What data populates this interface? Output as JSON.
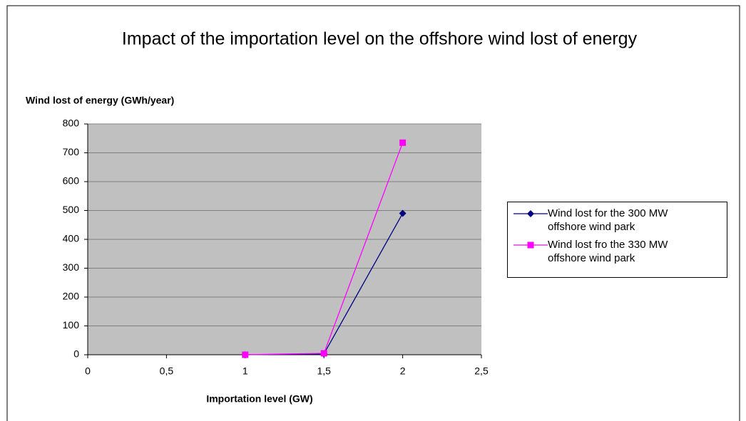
{
  "chart_data": {
    "type": "line",
    "title": "Impact of the importation level on the offshore wind lost of energy",
    "y_label": "Wind lost of energy (GWh/year)",
    "x_label": "Importation level (GW)",
    "x": [
      1,
      1.5,
      2
    ],
    "series": [
      {
        "name": "Wind lost for the 300 MW offshore wind park",
        "color": "#000080",
        "marker": "diamond",
        "values": [
          0,
          3,
          490
        ]
      },
      {
        "name": "Wind lost fro the 330 MW offshore wind park",
        "color": "#ff00ff",
        "marker": "square",
        "values": [
          0,
          5,
          735
        ]
      }
    ],
    "xlim": [
      0,
      2.5
    ],
    "xticks": [
      0,
      {
        "value": 0.5,
        "label": "0,5"
      },
      1,
      {
        "value": 1.5,
        "label": "1,5"
      },
      2,
      {
        "value": 2.5,
        "label": "2,5"
      }
    ],
    "ylim": [
      0,
      800
    ],
    "yticks": [
      0,
      100,
      200,
      300,
      400,
      500,
      600,
      700,
      800
    ],
    "grid": true,
    "plot_background": "#c0c0c0",
    "legend_position": "right"
  }
}
